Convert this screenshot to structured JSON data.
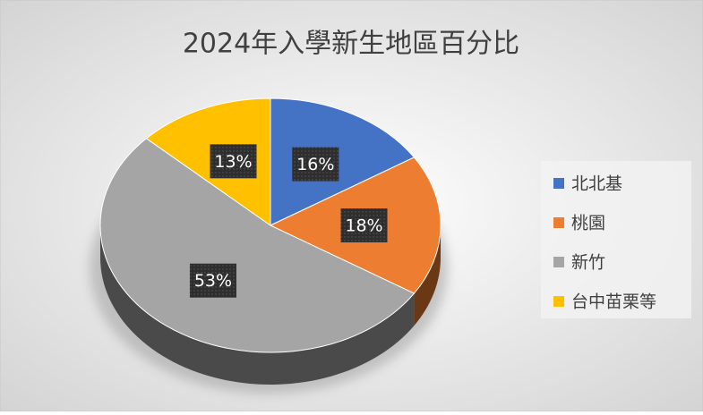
{
  "chart_data": {
    "type": "pie",
    "title": "2024年入學新生地區百分比",
    "categories": [
      "北北基",
      "桃園",
      "新竹",
      "台中苗栗等"
    ],
    "values": [
      16,
      18,
      53,
      13
    ],
    "value_labels": [
      "16%",
      "18%",
      "53%",
      "13%"
    ],
    "colors": [
      "#4472c4",
      "#ed7d31",
      "#a5a5a5",
      "#ffc000"
    ],
    "legend": "right"
  }
}
